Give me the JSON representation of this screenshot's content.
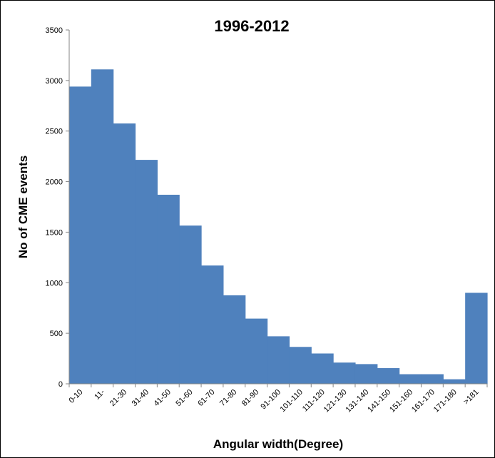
{
  "chart_data": {
    "type": "bar",
    "title": "1996-2012",
    "xlabel": "Angular width(Degree)",
    "ylabel": "No of CME events",
    "categories": [
      "0-10",
      "11-",
      "21-30",
      "31-40",
      "41-50",
      "51-60",
      "61-70",
      "71-80",
      "81-90",
      "91-100",
      "101-110",
      "111-120",
      "121-130",
      "131-140",
      "141-150",
      "151-160",
      "161-170",
      "171-180",
      ">181"
    ],
    "values": [
      2940,
      3110,
      2575,
      2215,
      1870,
      1565,
      1170,
      875,
      645,
      470,
      365,
      300,
      210,
      195,
      155,
      95,
      95,
      45,
      900
    ],
    "ylim": [
      0,
      3500
    ],
    "yticks": [
      0,
      500,
      1000,
      1500,
      2000,
      2500,
      3000,
      3500
    ],
    "bar_color": "#4f81bd",
    "grid": false,
    "legend": "none"
  }
}
